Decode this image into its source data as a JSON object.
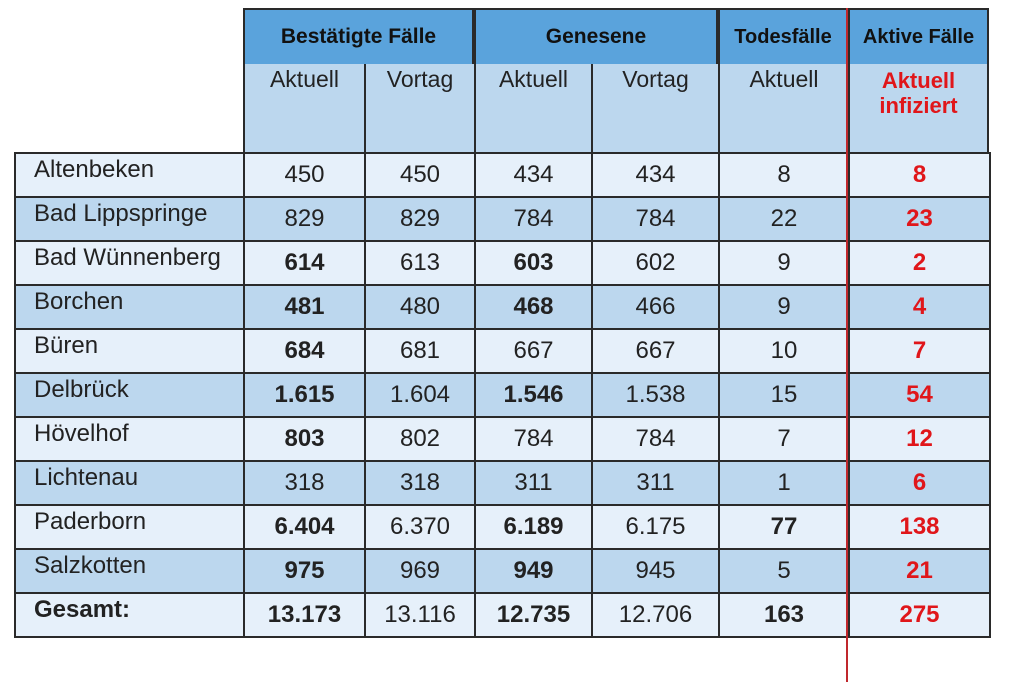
{
  "header": {
    "groups": [
      {
        "label": "Bestätigte Fälle"
      },
      {
        "label": "Genesene"
      },
      {
        "label": "Todesfälle"
      },
      {
        "label": "Aktive Fälle"
      }
    ],
    "subheaders": [
      "Aktuell",
      "Vortag",
      "Aktuell",
      "Vortag",
      "Aktuell",
      "Aktuell\ninfiziert"
    ]
  },
  "rows": [
    {
      "name": "Altenbeken",
      "values": [
        "450",
        "450",
        "434",
        "434",
        "8",
        "8"
      ],
      "bold": [
        false,
        false,
        false,
        false,
        false
      ]
    },
    {
      "name": "Bad Lippspringe",
      "values": [
        "829",
        "829",
        "784",
        "784",
        "22",
        "23"
      ],
      "bold": [
        false,
        false,
        false,
        false,
        false
      ]
    },
    {
      "name": "Bad Wünnenberg",
      "values": [
        "614",
        "613",
        "603",
        "602",
        "9",
        "2"
      ],
      "bold": [
        true,
        false,
        true,
        false,
        false
      ]
    },
    {
      "name": "Borchen",
      "values": [
        "481",
        "480",
        "468",
        "466",
        "9",
        "4"
      ],
      "bold": [
        true,
        false,
        true,
        false,
        false
      ]
    },
    {
      "name": "Büren",
      "values": [
        "684",
        "681",
        "667",
        "667",
        "10",
        "7"
      ],
      "bold": [
        true,
        false,
        false,
        false,
        false
      ]
    },
    {
      "name": "Delbrück",
      "values": [
        "1.615",
        "1.604",
        "1.546",
        "1.538",
        "15",
        "54"
      ],
      "bold": [
        true,
        false,
        true,
        false,
        false
      ]
    },
    {
      "name": "Hövelhof",
      "values": [
        "803",
        "802",
        "784",
        "784",
        "7",
        "12"
      ],
      "bold": [
        true,
        false,
        false,
        false,
        false
      ]
    },
    {
      "name": "Lichtenau",
      "values": [
        "318",
        "318",
        "311",
        "311",
        "1",
        "6"
      ],
      "bold": [
        false,
        false,
        false,
        false,
        false
      ]
    },
    {
      "name": "Paderborn",
      "values": [
        "6.404",
        "6.370",
        "6.189",
        "6.175",
        "77",
        "138"
      ],
      "bold": [
        true,
        false,
        true,
        false,
        true
      ]
    },
    {
      "name": "Salzkotten",
      "values": [
        "975",
        "969",
        "949",
        "945",
        "5",
        "21"
      ],
      "bold": [
        true,
        false,
        true,
        false,
        false
      ]
    }
  ],
  "total": {
    "name": "Gesamt:",
    "values": [
      "13.173",
      "13.116",
      "12.735",
      "12.706",
      "163",
      "275"
    ]
  },
  "colors": {
    "header_dark": "#5aa3dc",
    "header_light": "#bcd7ee",
    "row_light": "#e6f0fa",
    "row_dark": "#bcd7ee",
    "accent_red": "#e0161a"
  }
}
